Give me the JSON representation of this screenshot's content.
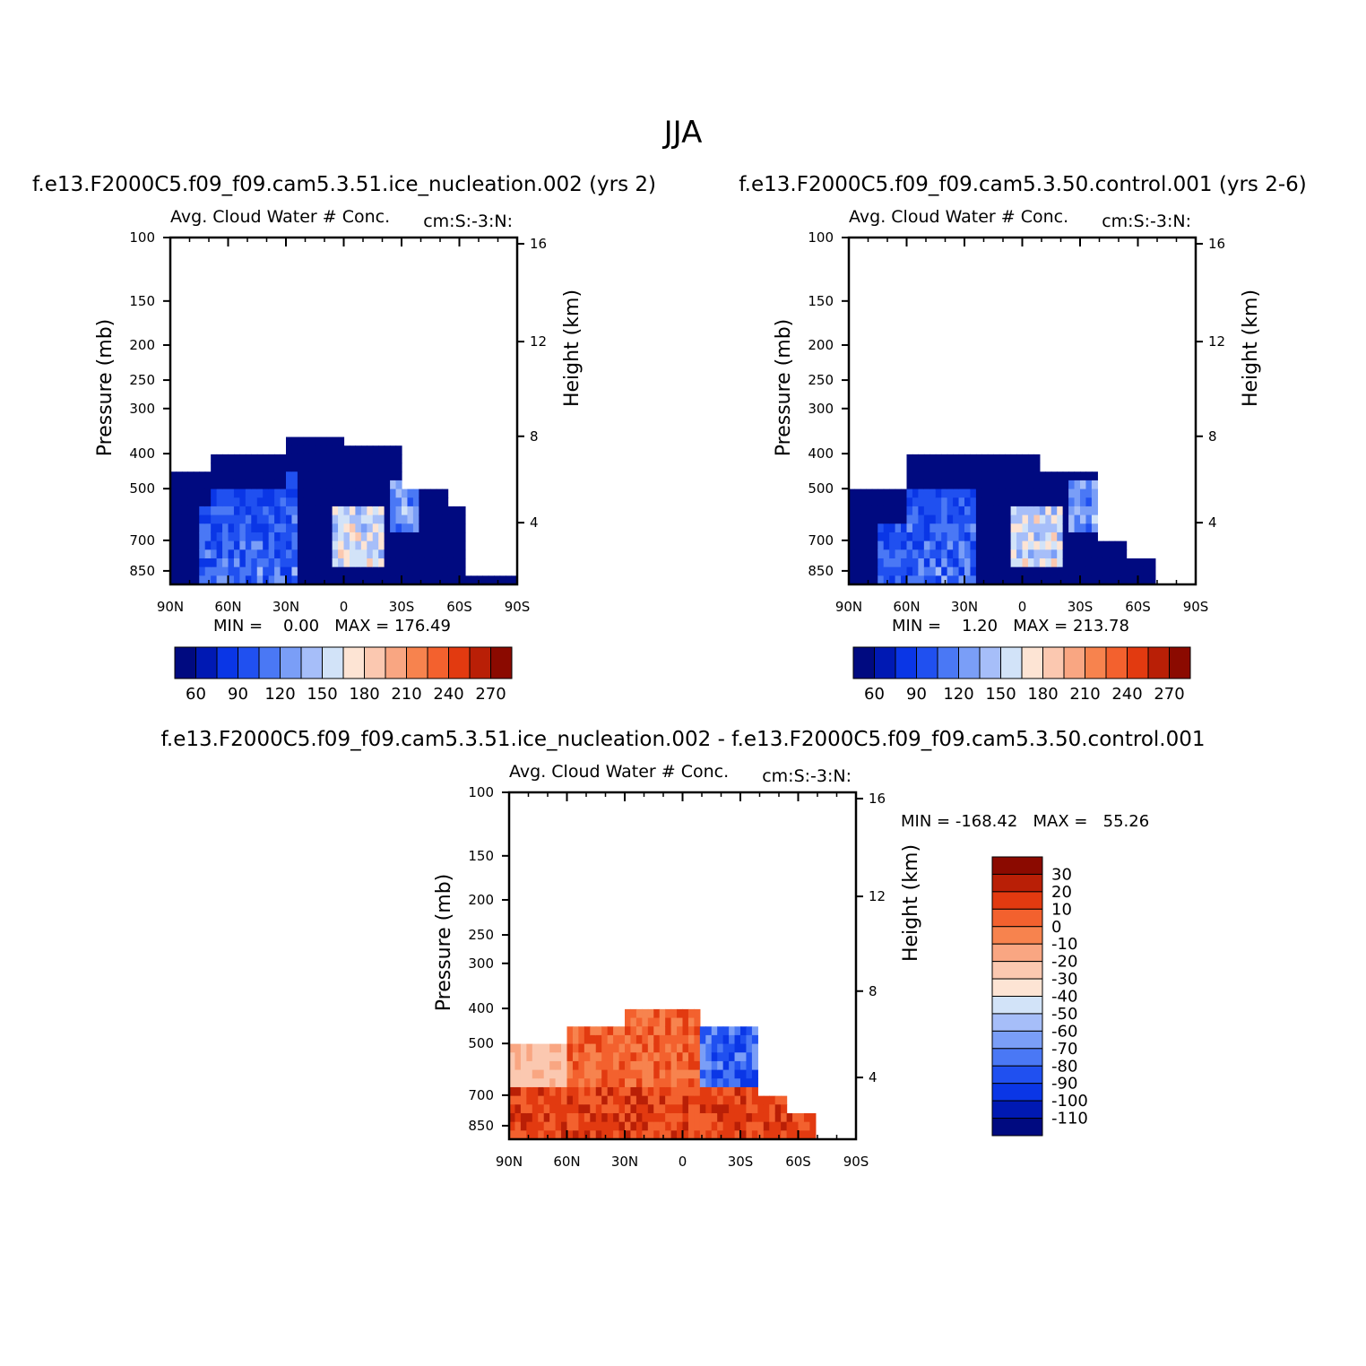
{
  "title": "JJA",
  "palette": {
    "diverging": [
      "#000a80",
      "#0019b3",
      "#0a36e6",
      "#2050f0",
      "#4a78f5",
      "#7a9ef7",
      "#a6bef9",
      "#d2e3f8",
      "#fde4d4",
      "#fbc8b0",
      "#f9a682",
      "#f7834e",
      "#f3612e",
      "#e23a10",
      "#b91f06",
      "#8b0a00"
    ],
    "diff": [
      "#000a80",
      "#0019b3",
      "#0a36e6",
      "#2050f0",
      "#4a78f5",
      "#7a9ef7",
      "#a6bef9",
      "#d2e3f8",
      "#fde4d4",
      "#fbc8b0",
      "#f9a682",
      "#f7834e",
      "#f3612e",
      "#e23a10",
      "#b91f06",
      "#8b0a00"
    ]
  },
  "chart_data": [
    {
      "id": "p1",
      "type": "heatmap",
      "case_title": "f.e13.F2000C5.f09_f09.cam5.3.51.ice_nucleation.002 (yrs 2)",
      "var_title": "Avg. Cloud Water # Conc.",
      "region_label": "cm:S:-3:N:",
      "ylabel": "Pressure (mb)",
      "y2label": "Height (km)",
      "x_ticks": [
        "90N",
        "60N",
        "30N",
        "0",
        "30S",
        "60S",
        "90S"
      ],
      "y_ticks": [
        "100",
        "150",
        "200",
        "250",
        "300",
        "400",
        "500",
        "700",
        "850"
      ],
      "y2_ticks": [
        "16",
        "12",
        "8",
        "4"
      ],
      "min_text": "MIN =    0.00   MAX = 176.49",
      "colorbar_labels": [
        "60",
        "90",
        "120",
        "150",
        "180",
        "210",
        "240",
        "270"
      ],
      "min": 0.0,
      "max": 176.49,
      "lat_range": [
        90,
        -90
      ],
      "p_range": [
        100,
        1000
      ]
    },
    {
      "id": "p2",
      "type": "heatmap",
      "case_title": "f.e13.F2000C5.f09_f09.cam5.3.50.control.001 (yrs 2-6)",
      "var_title": "Avg. Cloud Water # Conc.",
      "region_label": "cm:S:-3:N:",
      "ylabel": "Pressure (mb)",
      "y2label": "Height (km)",
      "x_ticks": [
        "90N",
        "60N",
        "30N",
        "0",
        "30S",
        "60S",
        "90S"
      ],
      "y_ticks": [
        "100",
        "150",
        "200",
        "250",
        "300",
        "400",
        "500",
        "700",
        "850"
      ],
      "y2_ticks": [
        "16",
        "12",
        "8",
        "4"
      ],
      "min_text": "MIN =    1.20   MAX = 213.78",
      "colorbar_labels": [
        "60",
        "90",
        "120",
        "150",
        "180",
        "210",
        "240",
        "270"
      ],
      "min": 1.2,
      "max": 213.78,
      "lat_range": [
        90,
        -90
      ],
      "p_range": [
        100,
        1000
      ]
    },
    {
      "id": "p3",
      "type": "heatmap",
      "case_title": "f.e13.F2000C5.f09_f09.cam5.3.51.ice_nucleation.002 - f.e13.F2000C5.f09_f09.cam5.3.50.control.001",
      "var_title": "Avg. Cloud Water # Conc.",
      "region_label": "cm:S:-3:N:",
      "ylabel": "Pressure (mb)",
      "y2label": "Height (km)",
      "x_ticks": [
        "90N",
        "60N",
        "30N",
        "0",
        "30S",
        "60S",
        "90S"
      ],
      "y_ticks": [
        "100",
        "150",
        "200",
        "250",
        "300",
        "400",
        "500",
        "700",
        "850"
      ],
      "y2_ticks": [
        "16",
        "12",
        "8",
        "4"
      ],
      "min_text": "MIN = -168.42   MAX =   55.26",
      "colorbar_labels": [
        "30",
        "20",
        "10",
        "0",
        "-10",
        "-20",
        "-30",
        "-40",
        "-50",
        "-60",
        "-70",
        "-80",
        "-90",
        "-100",
        "-110"
      ],
      "min": -168.42,
      "max": 55.26,
      "lat_range": [
        90,
        -90
      ],
      "p_range": [
        100,
        1000
      ]
    }
  ]
}
